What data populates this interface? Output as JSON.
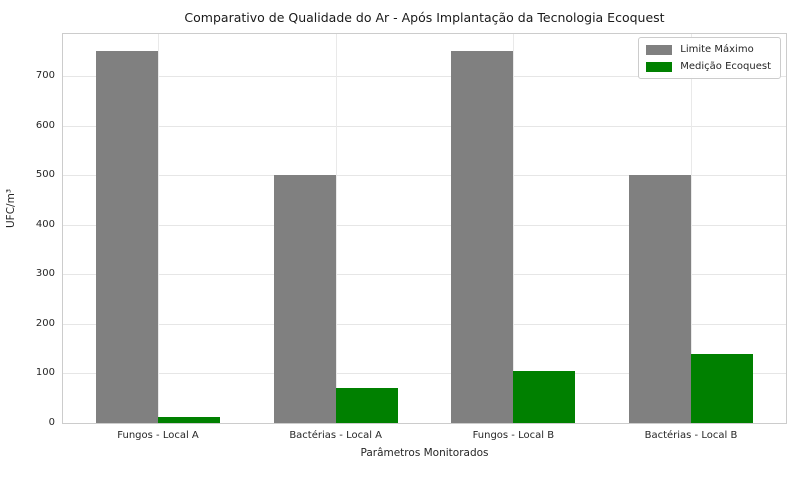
{
  "chart_data": {
    "type": "bar",
    "title": "Comparativo de Qualidade do Ar - Após Implantação da Tecnologia Ecoquest",
    "xlabel": "Parâmetros Monitorados",
    "ylabel": "UFC/m³",
    "categories": [
      "Fungos - Local A",
      "Bactérias - Local A",
      "Fungos - Local B",
      "Bactérias - Local B"
    ],
    "series": [
      {
        "name": "Limite Máximo",
        "color": "#808080",
        "values": [
          750,
          500,
          750,
          500
        ]
      },
      {
        "name": "Medição Ecoquest",
        "color": "#008000",
        "values": [
          12,
          70,
          105,
          140
        ]
      }
    ],
    "yticks": [
      0,
      100,
      200,
      300,
      400,
      500,
      600,
      700
    ],
    "ylim": [
      0,
      785
    ],
    "xlim": [
      -0.535,
      3.535
    ],
    "bar_width": 0.35,
    "grid": true,
    "legend_position": "upper right",
    "colors": {
      "background": "#ffffff",
      "grid": "#e6e6e6",
      "spine": "#cccccc",
      "text": "#262626"
    }
  }
}
